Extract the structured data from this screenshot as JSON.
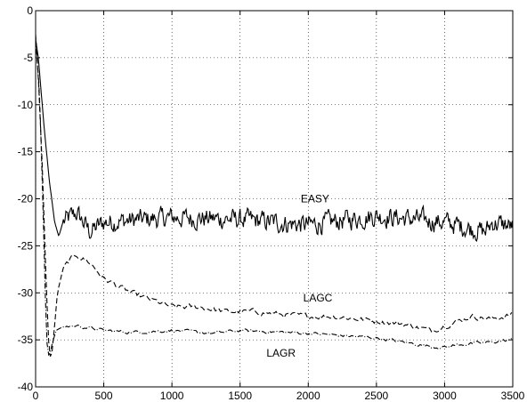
{
  "chart_data": {
    "type": "line",
    "title": "",
    "xlabel": "",
    "ylabel": "",
    "xlim": [
      0,
      3500
    ],
    "ylim": [
      -40,
      0
    ],
    "xticks": [
      0,
      500,
      1000,
      1500,
      2000,
      2500,
      3000,
      3500
    ],
    "yticks": [
      0,
      -5,
      -10,
      -15,
      -20,
      -25,
      -30,
      -35,
      -40
    ],
    "grid": true,
    "legend": "none",
    "series": [
      {
        "name": "EASY",
        "style": "solid",
        "noise": 0.9,
        "x": [
          0,
          20,
          60,
          100,
          140,
          170,
          200,
          250,
          300,
          350,
          400,
          500,
          700,
          1000,
          1500,
          2000,
          2500,
          3000,
          3300,
          3350,
          3500
        ],
        "y": [
          -3,
          -5,
          -12,
          -18,
          -22.5,
          -24,
          -22.5,
          -22,
          -21.5,
          -22.5,
          -23.5,
          -22.5,
          -22.3,
          -22,
          -22.2,
          -22.8,
          -21.8,
          -22.5,
          -23.5,
          -22.5,
          -23
        ]
      },
      {
        "name": "LAGC",
        "style": "dashed",
        "noise": 0.25,
        "x": [
          0,
          20,
          50,
          80,
          100,
          115,
          130,
          160,
          200,
          250,
          300,
          400,
          500,
          700,
          900,
          1000,
          1200,
          1400,
          1600,
          1800,
          2000,
          2200,
          2500,
          2700,
          2900,
          3000,
          3200,
          3350,
          3500
        ],
        "y": [
          -2.5,
          -7,
          -17,
          -30,
          -36.5,
          -37,
          -35,
          -30,
          -27.5,
          -26.5,
          -26,
          -26.8,
          -28.5,
          -30,
          -31,
          -31.5,
          -31.5,
          -32,
          -32,
          -32.3,
          -32.5,
          -32.5,
          -33,
          -33.3,
          -34,
          -33.5,
          -32.5,
          -32.8,
          -32.3
        ]
      },
      {
        "name": "LAGR",
        "style": "dashdot",
        "noise": 0.15,
        "x": [
          0,
          30,
          60,
          80,
          100,
          120,
          150,
          200,
          300,
          500,
          700,
          1000,
          1300,
          1500,
          2000,
          2500,
          2900,
          3000,
          3100,
          3300,
          3500
        ],
        "y": [
          -3,
          -9,
          -24,
          -35,
          -37,
          -35.5,
          -34,
          -33.6,
          -33.5,
          -34,
          -34.2,
          -34,
          -34.3,
          -34,
          -34.3,
          -34.8,
          -35.7,
          -35.8,
          -35.5,
          -35.3,
          -35
        ]
      }
    ],
    "annotations": [
      {
        "text": "EASY",
        "x": 2050,
        "y": -20.4
      },
      {
        "text": "LAGC",
        "x": 2070,
        "y": -30.9
      },
      {
        "text": "LAGR",
        "x": 1800,
        "y": -36.8
      }
    ]
  }
}
